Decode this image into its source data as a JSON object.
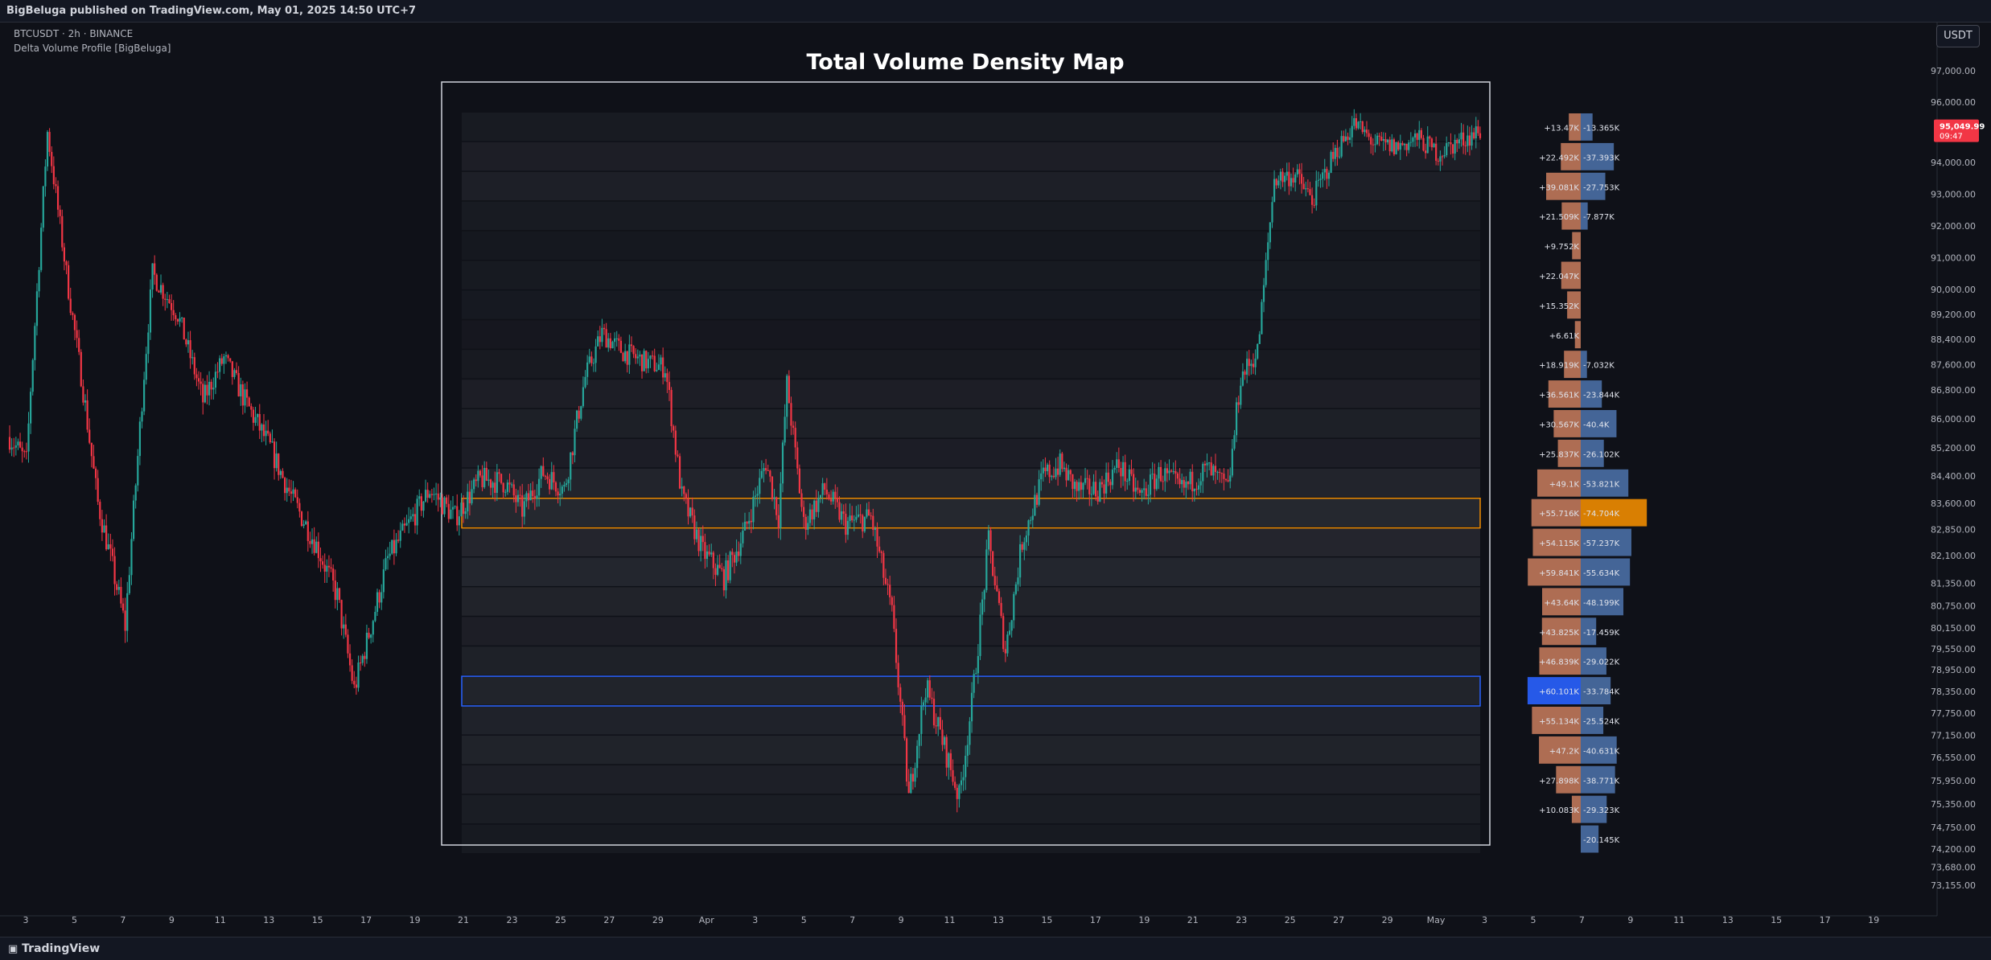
{
  "header": {
    "published": "BigBeluga published on TradingView.com, May 01, 2025 14:50 UTC+7",
    "symbol_line": "BTCUSDT · 2h · BINANCE",
    "indicator_line": "Delta Volume Profile [BigBeluga]"
  },
  "currency_button": "USDT",
  "footer": {
    "brand": "TradingView"
  },
  "chart_data": {
    "type": "candlestick",
    "title": "Total Volume Density Map",
    "price_axis": {
      "ticks": [
        "97,000.00",
        "96,000.00",
        "94,000.00",
        "93,000.00",
        "92,000.00",
        "91,000.00",
        "90,000.00",
        "89,200.00",
        "88,400.00",
        "87,600.00",
        "86,800.00",
        "86,000.00",
        "85,200.00",
        "84,400.00",
        "83,600.00",
        "82,850.00",
        "82,100.00",
        "81,350.00",
        "80,750.00",
        "80,150.00",
        "79,550.00",
        "78,950.00",
        "78,350.00",
        "77,750.00",
        "77,150.00",
        "76,550.00",
        "75,950.00",
        "75,350.00",
        "74,750.00",
        "74,200.00",
        "73,680.00",
        "73,155.00"
      ],
      "current_price": "95,049.99",
      "countdown": "09:47",
      "current_color": "#f23645"
    },
    "time_axis": {
      "labels": [
        "3",
        "5",
        "7",
        "9",
        "11",
        "13",
        "15",
        "17",
        "19",
        "21",
        "23",
        "25",
        "27",
        "29",
        "Apr",
        "3",
        "5",
        "7",
        "9",
        "11",
        "13",
        "15",
        "17",
        "19",
        "21",
        "23",
        "25",
        "27",
        "29",
        "May",
        "3",
        "5",
        "7",
        "9",
        "11",
        "13",
        "15",
        "17",
        "19"
      ]
    },
    "colors": {
      "up": "#26a69a",
      "down": "#f23645",
      "buy_bar": "#c0785a",
      "sell_bar": "#4a6fa5",
      "highlight_sell": "#f08c00",
      "highlight_buy": "#2962ff"
    },
    "price_path": {
      "anchors": [
        {
          "t": 0,
          "p": 85500
        },
        {
          "t": 8,
          "p": 84800
        },
        {
          "t": 18,
          "p": 95000
        },
        {
          "t": 28,
          "p": 90000
        },
        {
          "t": 42,
          "p": 83600
        },
        {
          "t": 55,
          "p": 80200
        },
        {
          "t": 68,
          "p": 90500
        },
        {
          "t": 80,
          "p": 89200
        },
        {
          "t": 92,
          "p": 86500
        },
        {
          "t": 102,
          "p": 87800
        },
        {
          "t": 112,
          "p": 86500
        },
        {
          "t": 124,
          "p": 85200
        },
        {
          "t": 134,
          "p": 83800
        },
        {
          "t": 146,
          "p": 82400
        },
        {
          "t": 156,
          "p": 81000
        },
        {
          "t": 164,
          "p": 78400
        },
        {
          "t": 172,
          "p": 80200
        },
        {
          "t": 180,
          "p": 82000
        },
        {
          "t": 190,
          "p": 83000
        },
        {
          "t": 200,
          "p": 84000
        },
        {
          "t": 212,
          "p": 83200
        },
        {
          "t": 224,
          "p": 84300
        },
        {
          "t": 236,
          "p": 84200
        },
        {
          "t": 244,
          "p": 83400
        },
        {
          "t": 254,
          "p": 84500
        },
        {
          "t": 264,
          "p": 84000
        },
        {
          "t": 274,
          "p": 87200
        },
        {
          "t": 282,
          "p": 88600
        },
        {
          "t": 292,
          "p": 88000
        },
        {
          "t": 302,
          "p": 87700
        },
        {
          "t": 312,
          "p": 87500
        },
        {
          "t": 320,
          "p": 83800
        },
        {
          "t": 330,
          "p": 82200
        },
        {
          "t": 340,
          "p": 81500
        },
        {
          "t": 350,
          "p": 82800
        },
        {
          "t": 360,
          "p": 84800
        },
        {
          "t": 366,
          "p": 83200
        },
        {
          "t": 370,
          "p": 87000
        },
        {
          "t": 378,
          "p": 83000
        },
        {
          "t": 388,
          "p": 84000
        },
        {
          "t": 398,
          "p": 83000
        },
        {
          "t": 410,
          "p": 83200
        },
        {
          "t": 420,
          "p": 80500
        },
        {
          "t": 428,
          "p": 75500
        },
        {
          "t": 436,
          "p": 78500
        },
        {
          "t": 444,
          "p": 77000
        },
        {
          "t": 452,
          "p": 75500
        },
        {
          "t": 458,
          "p": 78000
        },
        {
          "t": 466,
          "p": 82500
        },
        {
          "t": 474,
          "p": 79500
        },
        {
          "t": 482,
          "p": 82500
        },
        {
          "t": 492,
          "p": 84400
        },
        {
          "t": 500,
          "p": 84700
        },
        {
          "t": 508,
          "p": 84000
        },
        {
          "t": 518,
          "p": 84000
        },
        {
          "t": 528,
          "p": 84700
        },
        {
          "t": 538,
          "p": 83800
        },
        {
          "t": 548,
          "p": 84500
        },
        {
          "t": 558,
          "p": 84000
        },
        {
          "t": 570,
          "p": 84600
        },
        {
          "t": 580,
          "p": 84000
        },
        {
          "t": 586,
          "p": 87200
        },
        {
          "t": 594,
          "p": 88000
        },
        {
          "t": 602,
          "p": 93500
        },
        {
          "t": 612,
          "p": 93600
        },
        {
          "t": 620,
          "p": 92800
        },
        {
          "t": 630,
          "p": 94200
        },
        {
          "t": 640,
          "p": 95300
        },
        {
          "t": 650,
          "p": 94600
        },
        {
          "t": 660,
          "p": 94500
        },
        {
          "t": 670,
          "p": 94800
        },
        {
          "t": 680,
          "p": 94300
        },
        {
          "t": 690,
          "p": 94700
        },
        {
          "t": 700,
          "p": 95050
        }
      ]
    },
    "density_map": {
      "rows": [
        {
          "buy": "+13.47K",
          "sell": "-13.365K"
        },
        {
          "buy": "+22.492K",
          "sell": "-37.393K"
        },
        {
          "buy": "+39.081K",
          "sell": "-27.753K"
        },
        {
          "buy": "+21.509K",
          "sell": "-7.877K"
        },
        {
          "buy": "+9.752K",
          "sell": ""
        },
        {
          "buy": "+22.047K",
          "sell": ""
        },
        {
          "buy": "+15.352K",
          "sell": ""
        },
        {
          "buy": "+6.61K",
          "sell": ""
        },
        {
          "buy": "+18.919K",
          "sell": "-7.032K"
        },
        {
          "buy": "+36.561K",
          "sell": "-23.844K"
        },
        {
          "buy": "+30.567K",
          "sell": "-40.4K"
        },
        {
          "buy": "+25.837K",
          "sell": "-26.102K"
        },
        {
          "buy": "+49.1K",
          "sell": "-53.821K"
        },
        {
          "buy": "+55.716K",
          "sell": "-74.704K",
          "highlight": "sell"
        },
        {
          "buy": "+54.115K",
          "sell": "-57.237K"
        },
        {
          "buy": "+59.841K",
          "sell": "-55.634K"
        },
        {
          "buy": "+43.64K",
          "sell": "-48.199K"
        },
        {
          "buy": "+43.825K",
          "sell": "-17.459K"
        },
        {
          "buy": "+46.839K",
          "sell": "-29.022K"
        },
        {
          "buy": "+60.101K",
          "sell": "-33.784K",
          "highlight": "buy"
        },
        {
          "buy": "+55.134K",
          "sell": "-25.524K"
        },
        {
          "buy": "+47.2K",
          "sell": "-40.631K"
        },
        {
          "buy": "+27.898K",
          "sell": "-38.771K"
        },
        {
          "buy": "+10.083K",
          "sell": "-29.323K"
        },
        {
          "buy": "",
          "sell": "-20.145K"
        }
      ],
      "values": [
        {
          "buy": 13.47,
          "sell": 13.365
        },
        {
          "buy": 22.492,
          "sell": 37.393
        },
        {
          "buy": 39.081,
          "sell": 27.753
        },
        {
          "buy": 21.509,
          "sell": 7.877
        },
        {
          "buy": 9.752,
          "sell": 0
        },
        {
          "buy": 22.047,
          "sell": 0
        },
        {
          "buy": 15.352,
          "sell": 0
        },
        {
          "buy": 6.61,
          "sell": 0
        },
        {
          "buy": 18.919,
          "sell": 7.032
        },
        {
          "buy": 36.561,
          "sell": 23.844
        },
        {
          "buy": 30.567,
          "sell": 40.4
        },
        {
          "buy": 25.837,
          "sell": 26.102
        },
        {
          "buy": 49.1,
          "sell": 53.821
        },
        {
          "buy": 55.716,
          "sell": 74.704
        },
        {
          "buy": 54.115,
          "sell": 57.237
        },
        {
          "buy": 59.841,
          "sell": 55.634
        },
        {
          "buy": 43.64,
          "sell": 48.199
        },
        {
          "buy": 43.825,
          "sell": 17.459
        },
        {
          "buy": 46.839,
          "sell": 29.022
        },
        {
          "buy": 60.101,
          "sell": 33.784
        },
        {
          "buy": 55.134,
          "sell": 25.524
        },
        {
          "buy": 47.2,
          "sell": 40.631
        },
        {
          "buy": 27.898,
          "sell": 38.771
        },
        {
          "buy": 10.083,
          "sell": 29.323
        },
        {
          "buy": 0,
          "sell": 20.145
        }
      ]
    }
  }
}
